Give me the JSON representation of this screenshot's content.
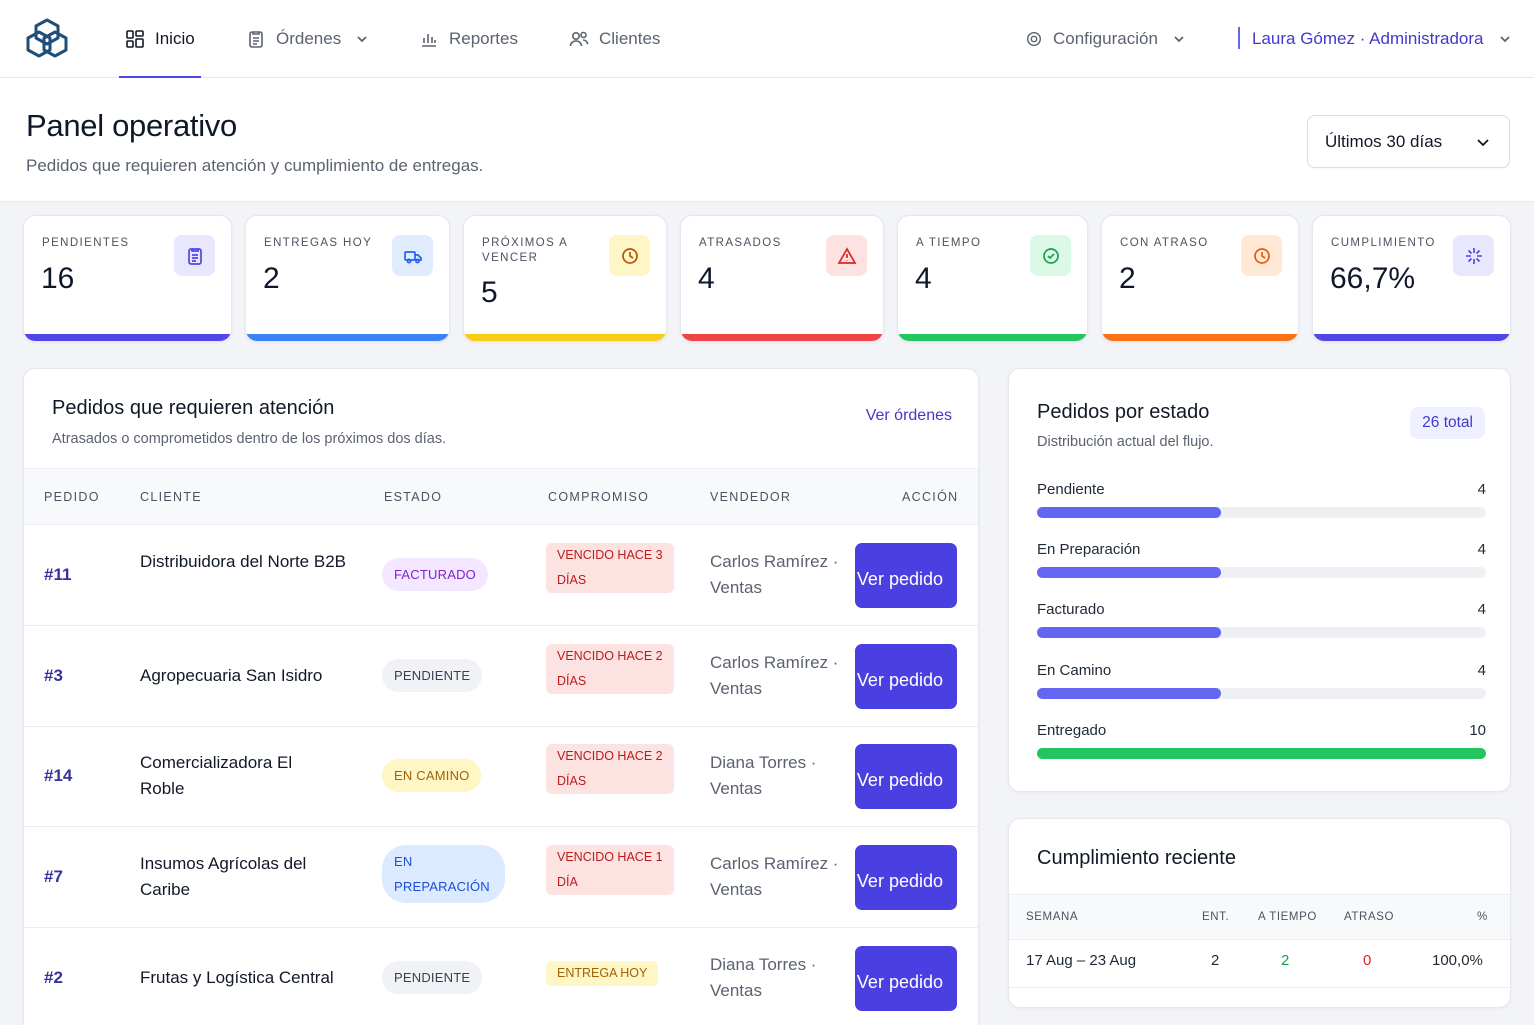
{
  "colors": {
    "accent": "#4a3fe0",
    "indigo": "#4f46e5",
    "blue": "#3b82f6",
    "yellow": "#facc15",
    "red": "#ef4444",
    "green": "#22c55e",
    "orange": "#f97316",
    "violet_bar": "#6366f1"
  },
  "nav": {
    "items": [
      {
        "label": "Inicio",
        "icon": "dashboard-icon",
        "active": true
      },
      {
        "label": "Órdenes",
        "icon": "clipboard-icon",
        "dropdown": true
      },
      {
        "label": "Reportes",
        "icon": "bar-chart-icon"
      },
      {
        "label": "Clientes",
        "icon": "users-icon"
      }
    ],
    "settings_label": "Configuración",
    "user_label": "Laura Gómez · Administradora"
  },
  "header": {
    "title": "Panel operativo",
    "subtitle": "Pedidos que requieren atención y cumplimiento de entregas.",
    "range_label": "Últimos 30 días"
  },
  "kpis": [
    {
      "label": "PENDIENTES",
      "value": "16",
      "icon": "clipboard-icon"
    },
    {
      "label": "ENTREGAS HOY",
      "value": "2",
      "icon": "truck-icon"
    },
    {
      "label": "PRÓXIMOS A VENCER",
      "value": "5",
      "icon": "clock-icon"
    },
    {
      "label": "ATRASADOS",
      "value": "4",
      "icon": "alert-triangle-icon"
    },
    {
      "label": "A TIEMPO",
      "value": "4",
      "icon": "check-circle-icon"
    },
    {
      "label": "CON ATRASO",
      "value": "2",
      "icon": "clock-icon"
    },
    {
      "label": "CUMPLIMIENTO",
      "value": "66,7%",
      "icon": "sparkle-icon"
    }
  ],
  "attention": {
    "title": "Pedidos que requieren atención",
    "subtitle": "Atrasados o comprometidos dentro de los próximos dos días.",
    "link": "Ver órdenes",
    "columns": [
      "PEDIDO",
      "CLIENTE",
      "ESTADO",
      "COMPROMISO",
      "VENDEDOR",
      "ACCIÓN"
    ],
    "rows": [
      {
        "order": "#11",
        "client": "Distribuidora del Norte B2B",
        "status": "FACTURADO",
        "due": "VENCIDO HACE 3 DÍAS",
        "seller": "Carlos Ramírez · Ventas",
        "action": "Ver pedido"
      },
      {
        "order": "#3",
        "client": "Agropecuaria San Isidro",
        "status": "PENDIENTE",
        "due": "VENCIDO HACE 2 DÍAS",
        "seller": "Carlos Ramírez · Ventas",
        "action": "Ver pedido"
      },
      {
        "order": "#14",
        "client": "Comercializadora El Roble",
        "status": "EN CAMINO",
        "due": "VENCIDO HACE 2 DÍAS",
        "seller": "Diana Torres · Ventas",
        "action": "Ver pedido"
      },
      {
        "order": "#7",
        "client": "Insumos Agrícolas del Caribe",
        "status": "EN PREPARACIÓN",
        "due": "VENCIDO HACE 1 DÍA",
        "seller": "Carlos Ramírez · Ventas",
        "action": "Ver pedido"
      },
      {
        "order": "#2",
        "client": "Frutas y Logística Central",
        "status": "PENDIENTE",
        "due": "ENTREGA HOY",
        "seller": "Diana Torres · Ventas",
        "action": "Ver pedido"
      }
    ]
  },
  "status_dist": {
    "title": "Pedidos por estado",
    "subtitle": "Distribución actual del flujo.",
    "total_label": "26 total",
    "items": [
      {
        "name": "Pendiente",
        "count": "4",
        "fraction": 0.41
      },
      {
        "name": "En Preparación",
        "count": "4",
        "fraction": 0.41
      },
      {
        "name": "Facturado",
        "count": "4",
        "fraction": 0.41
      },
      {
        "name": "En Camino",
        "count": "4",
        "fraction": 0.41
      },
      {
        "name": "Entregado",
        "count": "10",
        "fraction": 1.0
      }
    ]
  },
  "compliance": {
    "title": "Cumplimiento reciente",
    "columns": [
      "SEMANA",
      "ENT.",
      "A TIEMPO",
      "ATRASO",
      "%"
    ],
    "rows": [
      {
        "week": "17 Aug – 23 Aug",
        "delivered": "2",
        "on_time": "2",
        "late": "0",
        "pct": "100,0%"
      }
    ]
  }
}
